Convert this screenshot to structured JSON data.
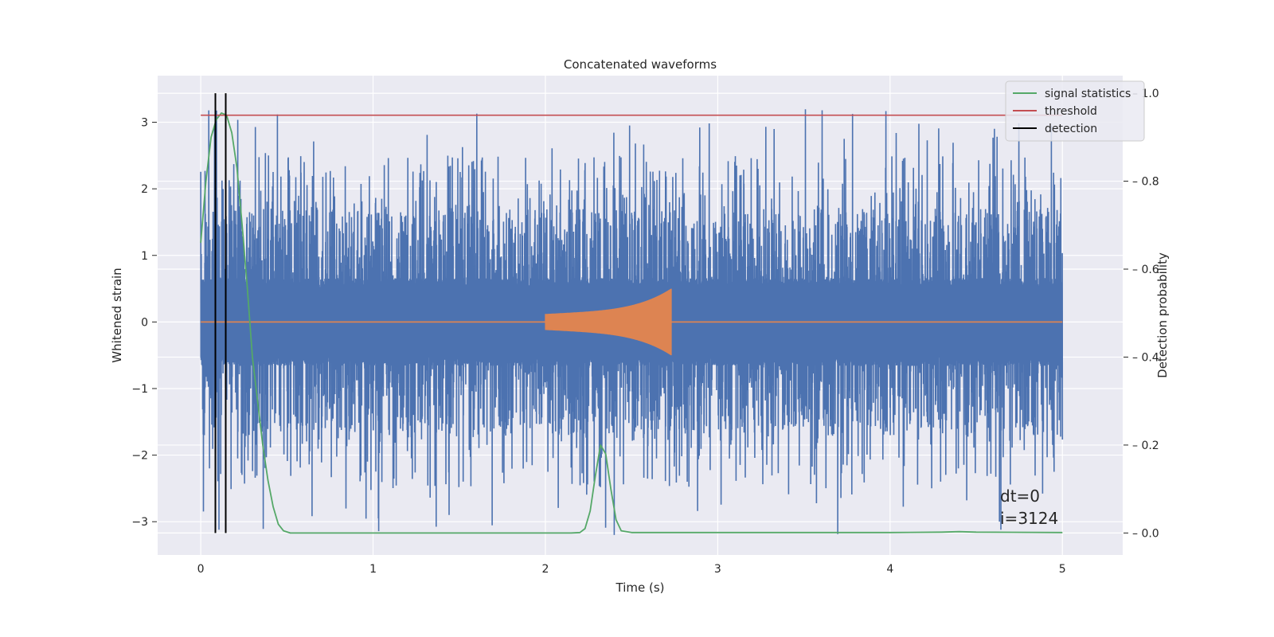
{
  "chart_data": {
    "type": "line",
    "title": "Concatenated waveforms",
    "xlabel": "Time (s)",
    "ylabel": "Whitened strain",
    "ylabel_right": "Detection probability",
    "xlim": [
      -0.25,
      5.35
    ],
    "ylim": [
      -3.5,
      3.7
    ],
    "ylim_right": [
      -0.05,
      1.04
    ],
    "xticks": [
      0,
      1,
      2,
      3,
      4,
      5
    ],
    "yticks": [
      -3,
      -2,
      -1,
      0,
      1,
      2,
      3
    ],
    "yticks_right": [
      0.0,
      0.2,
      0.4,
      0.6,
      0.8,
      1.0
    ],
    "yticks_right_labels": [
      "0.0",
      "0.2",
      "0.4",
      "0.6",
      "0.8",
      "1.0"
    ],
    "grid": true,
    "legend_position": "top-right",
    "colors": {
      "noise": "#4c72b0",
      "template": "#dd8452",
      "statistics": "#55a868",
      "threshold": "#c44e52",
      "detection": "#000000",
      "background": "#eaeaf2",
      "grid": "#ffffff"
    },
    "series": [
      {
        "name": "signal statistics",
        "axis": "right",
        "x": [
          0.0,
          0.03,
          0.06,
          0.09,
          0.12,
          0.15,
          0.18,
          0.21,
          0.24,
          0.27,
          0.3,
          0.33,
          0.36,
          0.39,
          0.42,
          0.45,
          0.48,
          0.52,
          1.0,
          1.5,
          2.0,
          2.15,
          2.2,
          2.23,
          2.26,
          2.29,
          2.32,
          2.35,
          2.38,
          2.41,
          2.44,
          2.5,
          3.0,
          3.5,
          4.0,
          4.3,
          4.4,
          4.5,
          5.0
        ],
        "values": [
          0.66,
          0.8,
          0.9,
          0.94,
          0.955,
          0.95,
          0.91,
          0.83,
          0.7,
          0.56,
          0.4,
          0.3,
          0.2,
          0.12,
          0.06,
          0.02,
          0.005,
          0.0,
          0.0,
          0.0,
          0.0,
          0.0,
          0.001,
          0.01,
          0.05,
          0.13,
          0.2,
          0.18,
          0.1,
          0.03,
          0.005,
          0.001,
          0.001,
          0.001,
          0.001,
          0.002,
          0.003,
          0.002,
          0.001
        ]
      },
      {
        "name": "threshold",
        "axis": "right",
        "x": [
          0.0,
          5.0
        ],
        "values": [
          0.95,
          0.95
        ]
      },
      {
        "name": "detection",
        "axis": "right",
        "x": [
          0.085,
          0.145
        ],
        "values": [
          1.0,
          1.0
        ]
      }
    ],
    "noise_series": {
      "axis": "left",
      "x_range": [
        0.0,
        5.0
      ],
      "core_amplitude": 0.6,
      "peak_envelope_max": 3.2
    },
    "template_series": {
      "axis": "left",
      "x_start": 2.0,
      "x_end": 2.73,
      "amplitude_start": 0.12,
      "amplitude_end": 0.4
    },
    "annotation": {
      "line1": "dt=0",
      "line2": "i=3124"
    }
  }
}
